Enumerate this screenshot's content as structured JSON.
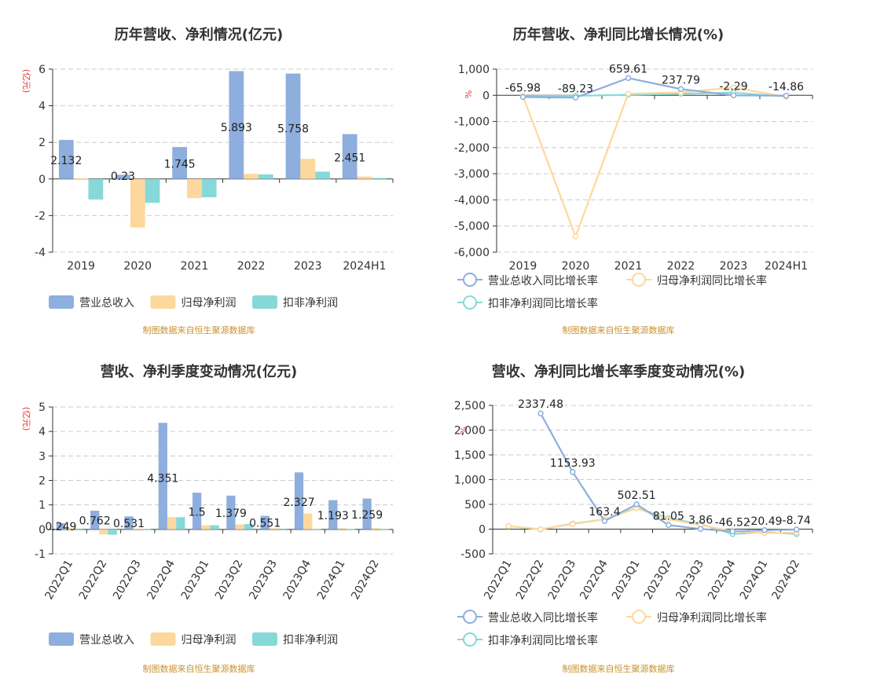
{
  "colors": {
    "revenue": "#8eaedd",
    "net_profit": "#fdd89c",
    "deducted_profit": "#86d9d8",
    "grid": "#cccccc",
    "axis": "#333333",
    "unit": "#e53935",
    "source": "#c8922f"
  },
  "legend_names": {
    "bar": [
      "营业总收入",
      "归母净利润",
      "扣非净利润"
    ],
    "line": [
      "营业总收入同比增长率",
      "归母净利润同比增长率",
      "扣非净利润同比增长率"
    ]
  },
  "source_text": "制图数据来自恒生聚源数据库",
  "chart_data": [
    {
      "id": "annual-values",
      "type": "bar",
      "title": "历年营收、净利情况(亿元)",
      "unit_label": "(亿元)",
      "categories": [
        "2019",
        "2020",
        "2021",
        "2022",
        "2023",
        "2024H1"
      ],
      "ylim": [
        -4,
        6
      ],
      "yticks": [
        -4,
        -2,
        0,
        2,
        4,
        6
      ],
      "tick_labels": [
        "-4",
        "-2",
        "0",
        "2",
        "4",
        "6"
      ],
      "series": [
        {
          "name": "营业总收入",
          "values": [
            2.132,
            0.23,
            1.745,
            5.893,
            5.758,
            2.451
          ],
          "labels": [
            "2.132",
            "0.23",
            "1.745",
            "5.893",
            "5.758",
            "2.451"
          ]
        },
        {
          "name": "归母净利润",
          "values": [
            0.03,
            -2.65,
            -1.05,
            0.28,
            1.1,
            0.14
          ]
        },
        {
          "name": "扣非净利润",
          "values": [
            -1.12,
            -1.3,
            -1.0,
            0.25,
            0.4,
            0.05
          ]
        }
      ]
    },
    {
      "id": "annual-growth",
      "type": "line",
      "title": "历年营收、净利同比增长情况(%)",
      "unit_label": "%",
      "categories": [
        "2019",
        "2020",
        "2021",
        "2022",
        "2023",
        "2024H1"
      ],
      "ylim": [
        -6000,
        1000
      ],
      "yticks": [
        -6000,
        -5000,
        -4000,
        -3000,
        -2000,
        -1000,
        0,
        1000
      ],
      "tick_labels": [
        "-6,000",
        "-5,000",
        "-4,000",
        "-3,000",
        "-2,000",
        "-1,000",
        "0",
        "1,000"
      ],
      "series": [
        {
          "name": "营业总收入同比增长率",
          "values": [
            -65.98,
            -89.23,
            659.61,
            237.79,
            -2.29,
            -14.86
          ],
          "labels": [
            "-65.98",
            "-89.23",
            "659.61",
            "237.79",
            "-2.29",
            "-14.86"
          ]
        },
        {
          "name": "归母净利润同比增长率",
          "values": [
            -20,
            -5400,
            60,
            110,
            300,
            -60
          ]
        },
        {
          "name": "扣非净利润同比增长率",
          "values": [
            -30,
            -20,
            20,
            60,
            100,
            -50
          ]
        }
      ]
    },
    {
      "id": "quarterly-values",
      "type": "bar",
      "title": "营收、净利季度变动情况(亿元)",
      "unit_label": "(亿元)",
      "categories": [
        "2022Q1",
        "2022Q2",
        "2022Q3",
        "2022Q4",
        "2023Q1",
        "2023Q2",
        "2023Q3",
        "2023Q4",
        "2024Q1",
        "2024Q2"
      ],
      "ylim": [
        -1,
        5
      ],
      "yticks": [
        -1,
        0,
        1,
        2,
        3,
        4,
        5
      ],
      "tick_labels": [
        "-1",
        "0",
        "1",
        "2",
        "3",
        "4",
        "5"
      ],
      "series": [
        {
          "name": "营业总收入",
          "values": [
            0.249,
            0.762,
            0.531,
            4.351,
            1.5,
            1.379,
            0.551,
            2.327,
            1.193,
            1.259
          ],
          "labels": [
            "0.249",
            "0.762",
            "0.531",
            "4.351",
            "1.5",
            "1.379",
            "0.551",
            "2.327",
            "1.193",
            "1.259"
          ]
        },
        {
          "name": "归母净利润",
          "values": [
            0.05,
            -0.2,
            0.03,
            0.5,
            0.17,
            0.2,
            0.05,
            0.65,
            0.05,
            0.05
          ]
        },
        {
          "name": "扣非净利润",
          "values": [
            0.03,
            -0.22,
            0.02,
            0.5,
            0.17,
            0.22,
            0.03,
            0.02,
            0.02,
            0.02
          ]
        }
      ]
    },
    {
      "id": "quarterly-growth",
      "type": "line",
      "title": "营收、净利同比增长率季度变动情况(%)",
      "unit_label": "%",
      "categories": [
        "2022Q1",
        "2022Q2",
        "2022Q3",
        "2022Q4",
        "2023Q1",
        "2023Q2",
        "2023Q3",
        "2023Q4",
        "2024Q1",
        "2024Q2"
      ],
      "ylim": [
        -500,
        2500
      ],
      "yticks": [
        -500,
        0,
        500,
        1000,
        1500,
        2000,
        2500
      ],
      "tick_labels": [
        "-500",
        "0",
        "500",
        "1,000",
        "1,500",
        "2,000",
        "2,500"
      ],
      "series": [
        {
          "name": "营业总收入同比增长率",
          "values": [
            null,
            2337.48,
            1153.93,
            163.4,
            502.51,
            81.05,
            3.86,
            -46.52,
            -20.49,
            -8.74
          ],
          "labels": [
            "",
            "2337.48",
            "1153.93",
            "163.4",
            "502.51",
            "81.05",
            "3.86",
            "-46.52",
            "-20.49",
            "-8.74"
          ]
        },
        {
          "name": "归母净利润同比增长率",
          "values": [
            60,
            0,
            100,
            200,
            420,
            200,
            80,
            -40,
            -80,
            -70
          ]
        },
        {
          "name": "扣非净利润同比增长率",
          "values": [
            60,
            -5,
            110,
            200,
            430,
            220,
            100,
            -100,
            -60,
            -100
          ]
        }
      ]
    }
  ]
}
